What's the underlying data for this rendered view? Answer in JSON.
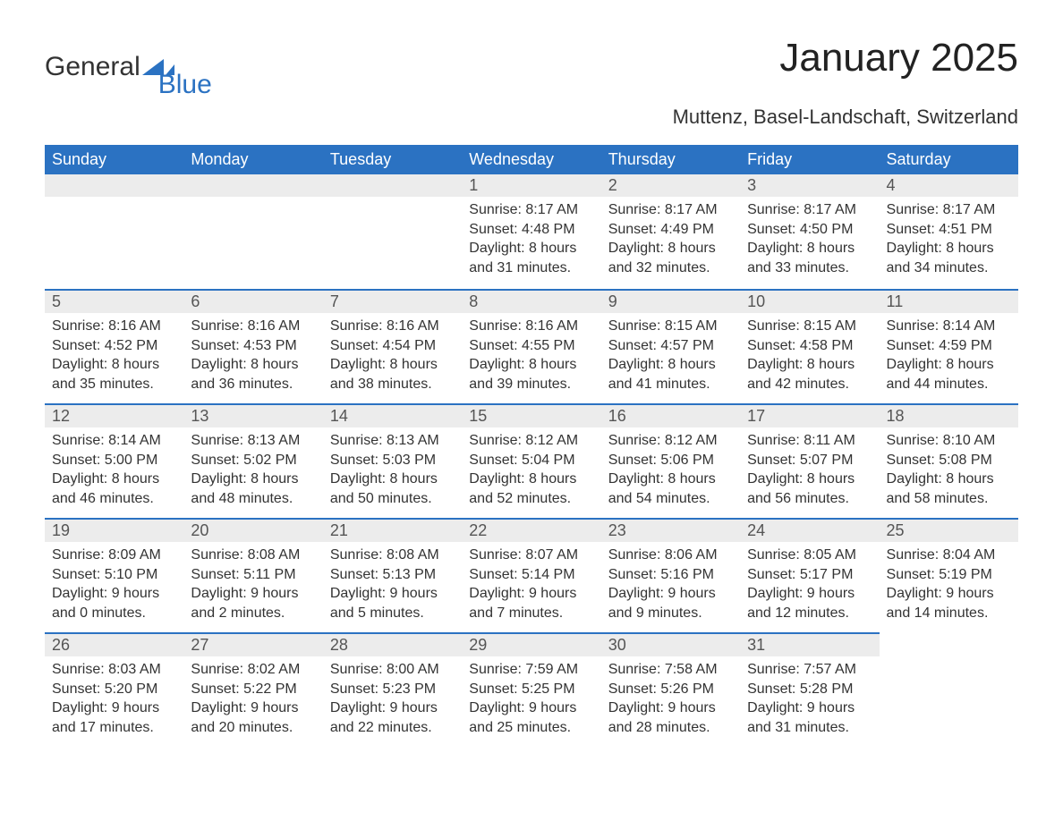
{
  "logo": {
    "text1": "General",
    "text2": "Blue",
    "accent_color": "#2b72c2"
  },
  "title": "January 2025",
  "location": "Muttenz, Basel-Landschaft, Switzerland",
  "colors": {
    "header_bg": "#2b72c2",
    "header_text": "#ffffff",
    "daynum_bg": "#ececec",
    "body_text": "#333333",
    "rule": "#2b72c2"
  },
  "fonts": {
    "title_size_pt": 32,
    "location_size_pt": 16,
    "dayhead_size_pt": 14,
    "body_size_pt": 12
  },
  "day_headers": [
    "Sunday",
    "Monday",
    "Tuesday",
    "Wednesday",
    "Thursday",
    "Friday",
    "Saturday"
  ],
  "weeks": [
    [
      null,
      null,
      null,
      {
        "n": "1",
        "sunrise": "8:17 AM",
        "sunset": "4:48 PM",
        "daylight": "8 hours and 31 minutes."
      },
      {
        "n": "2",
        "sunrise": "8:17 AM",
        "sunset": "4:49 PM",
        "daylight": "8 hours and 32 minutes."
      },
      {
        "n": "3",
        "sunrise": "8:17 AM",
        "sunset": "4:50 PM",
        "daylight": "8 hours and 33 minutes."
      },
      {
        "n": "4",
        "sunrise": "8:17 AM",
        "sunset": "4:51 PM",
        "daylight": "8 hours and 34 minutes."
      }
    ],
    [
      {
        "n": "5",
        "sunrise": "8:16 AM",
        "sunset": "4:52 PM",
        "daylight": "8 hours and 35 minutes."
      },
      {
        "n": "6",
        "sunrise": "8:16 AM",
        "sunset": "4:53 PM",
        "daylight": "8 hours and 36 minutes."
      },
      {
        "n": "7",
        "sunrise": "8:16 AM",
        "sunset": "4:54 PM",
        "daylight": "8 hours and 38 minutes."
      },
      {
        "n": "8",
        "sunrise": "8:16 AM",
        "sunset": "4:55 PM",
        "daylight": "8 hours and 39 minutes."
      },
      {
        "n": "9",
        "sunrise": "8:15 AM",
        "sunset": "4:57 PM",
        "daylight": "8 hours and 41 minutes."
      },
      {
        "n": "10",
        "sunrise": "8:15 AM",
        "sunset": "4:58 PM",
        "daylight": "8 hours and 42 minutes."
      },
      {
        "n": "11",
        "sunrise": "8:14 AM",
        "sunset": "4:59 PM",
        "daylight": "8 hours and 44 minutes."
      }
    ],
    [
      {
        "n": "12",
        "sunrise": "8:14 AM",
        "sunset": "5:00 PM",
        "daylight": "8 hours and 46 minutes."
      },
      {
        "n": "13",
        "sunrise": "8:13 AM",
        "sunset": "5:02 PM",
        "daylight": "8 hours and 48 minutes."
      },
      {
        "n": "14",
        "sunrise": "8:13 AM",
        "sunset": "5:03 PM",
        "daylight": "8 hours and 50 minutes."
      },
      {
        "n": "15",
        "sunrise": "8:12 AM",
        "sunset": "5:04 PM",
        "daylight": "8 hours and 52 minutes."
      },
      {
        "n": "16",
        "sunrise": "8:12 AM",
        "sunset": "5:06 PM",
        "daylight": "8 hours and 54 minutes."
      },
      {
        "n": "17",
        "sunrise": "8:11 AM",
        "sunset": "5:07 PM",
        "daylight": "8 hours and 56 minutes."
      },
      {
        "n": "18",
        "sunrise": "8:10 AM",
        "sunset": "5:08 PM",
        "daylight": "8 hours and 58 minutes."
      }
    ],
    [
      {
        "n": "19",
        "sunrise": "8:09 AM",
        "sunset": "5:10 PM",
        "daylight": "9 hours and 0 minutes."
      },
      {
        "n": "20",
        "sunrise": "8:08 AM",
        "sunset": "5:11 PM",
        "daylight": "9 hours and 2 minutes."
      },
      {
        "n": "21",
        "sunrise": "8:08 AM",
        "sunset": "5:13 PM",
        "daylight": "9 hours and 5 minutes."
      },
      {
        "n": "22",
        "sunrise": "8:07 AM",
        "sunset": "5:14 PM",
        "daylight": "9 hours and 7 minutes."
      },
      {
        "n": "23",
        "sunrise": "8:06 AM",
        "sunset": "5:16 PM",
        "daylight": "9 hours and 9 minutes."
      },
      {
        "n": "24",
        "sunrise": "8:05 AM",
        "sunset": "5:17 PM",
        "daylight": "9 hours and 12 minutes."
      },
      {
        "n": "25",
        "sunrise": "8:04 AM",
        "sunset": "5:19 PM",
        "daylight": "9 hours and 14 minutes."
      }
    ],
    [
      {
        "n": "26",
        "sunrise": "8:03 AM",
        "sunset": "5:20 PM",
        "daylight": "9 hours and 17 minutes."
      },
      {
        "n": "27",
        "sunrise": "8:02 AM",
        "sunset": "5:22 PM",
        "daylight": "9 hours and 20 minutes."
      },
      {
        "n": "28",
        "sunrise": "8:00 AM",
        "sunset": "5:23 PM",
        "daylight": "9 hours and 22 minutes."
      },
      {
        "n": "29",
        "sunrise": "7:59 AM",
        "sunset": "5:25 PM",
        "daylight": "9 hours and 25 minutes."
      },
      {
        "n": "30",
        "sunrise": "7:58 AM",
        "sunset": "5:26 PM",
        "daylight": "9 hours and 28 minutes."
      },
      {
        "n": "31",
        "sunrise": "7:57 AM",
        "sunset": "5:28 PM",
        "daylight": "9 hours and 31 minutes."
      },
      null
    ]
  ],
  "labels": {
    "sunrise": "Sunrise: ",
    "sunset": "Sunset: ",
    "daylight": "Daylight: "
  }
}
